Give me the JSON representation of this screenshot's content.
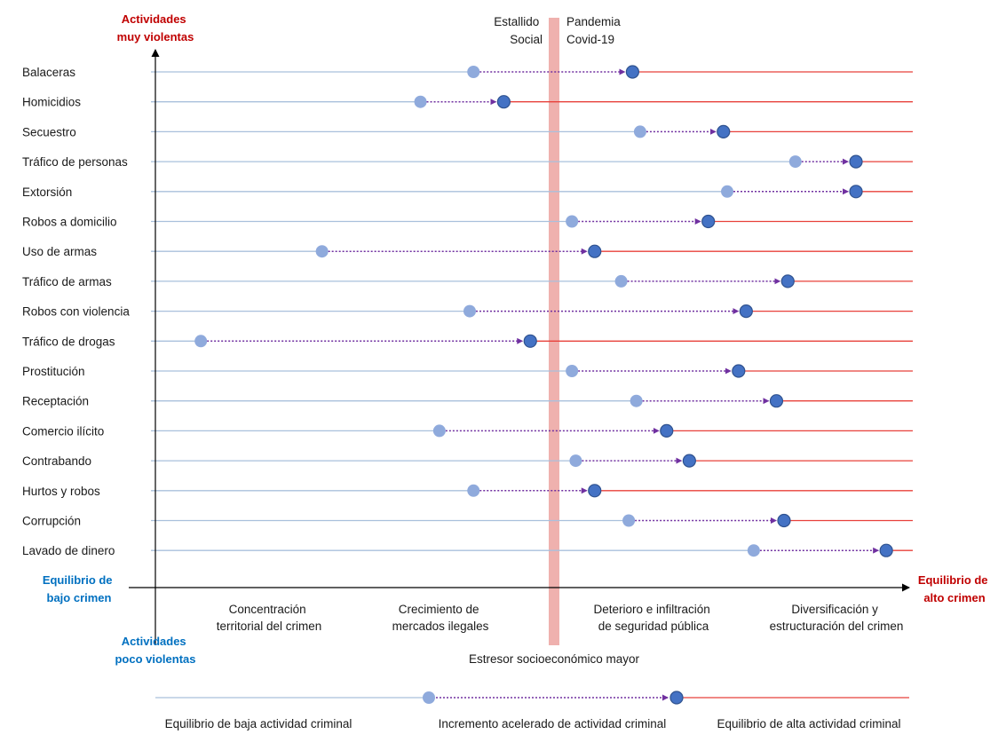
{
  "axis": {
    "top_label": [
      "Actividades",
      "muy violentas"
    ],
    "bottom_label": [
      "Actividades",
      "poco violentas"
    ],
    "left_label": [
      "Equilibrio de",
      "bajo crimen"
    ],
    "right_label": [
      "Equilibrio de",
      "alto crimen"
    ]
  },
  "colors": {
    "low_line": "#a9c0dc",
    "high_line": "#e8403a",
    "start_dot": "#8faadc",
    "end_dot": "#4472c4",
    "arrow": "#7030a0",
    "band": "#efb1ae",
    "blue_text": "#0070c0",
    "red_text": "#c00000"
  },
  "events": {
    "left": [
      "Estallido",
      "Social"
    ],
    "right": [
      "Pandemia",
      "Covid-19"
    ]
  },
  "stressor_label": "Estresor socioeconómico mayor",
  "phases": [
    [
      "Concentración",
      "territorial del crimen"
    ],
    [
      "Crecimiento de",
      "mercados ilegales"
    ],
    [
      "Deterioro e infiltración",
      "de seguridad pública"
    ],
    [
      "Diversificación y",
      "estructuración del crimen"
    ]
  ],
  "legend": {
    "labels": [
      "Equilibrio de baja actividad criminal",
      "Incremento acelerado de actividad criminal",
      "Equilibrio de alta actividad criminal"
    ]
  },
  "chart_data": {
    "type": "dumbbell",
    "xrange": [
      0,
      100
    ],
    "rows": [
      {
        "name": "Balaceras",
        "start": 42,
        "end": 63
      },
      {
        "name": "Homicidios",
        "start": 35,
        "end": 46
      },
      {
        "name": "Secuestro",
        "start": 64,
        "end": 75
      },
      {
        "name": "Tráfico de personas",
        "start": 84.5,
        "end": 92.5
      },
      {
        "name": "Extorsión",
        "start": 75.5,
        "end": 92.5
      },
      {
        "name": "Robos a domicilio",
        "start": 55,
        "end": 73
      },
      {
        "name": "Uso de armas",
        "start": 22,
        "end": 58
      },
      {
        "name": "Tráfico de armas",
        "start": 61.5,
        "end": 83.5
      },
      {
        "name": "Robos con violencia",
        "start": 41.5,
        "end": 78
      },
      {
        "name": "Tráfico de drogas",
        "start": 6,
        "end": 49.5
      },
      {
        "name": "Prostitución",
        "start": 55,
        "end": 77
      },
      {
        "name": "Receptación",
        "start": 63.5,
        "end": 82
      },
      {
        "name": "Comercio ilícito",
        "start": 37.5,
        "end": 67.5
      },
      {
        "name": "Contrabando",
        "start": 55.5,
        "end": 70.5
      },
      {
        "name": "Hurtos y robos",
        "start": 42,
        "end": 58
      },
      {
        "name": "Corrupción",
        "start": 62.5,
        "end": 83
      },
      {
        "name": "Lavado de dinero",
        "start": 79,
        "end": 96.5
      }
    ]
  }
}
